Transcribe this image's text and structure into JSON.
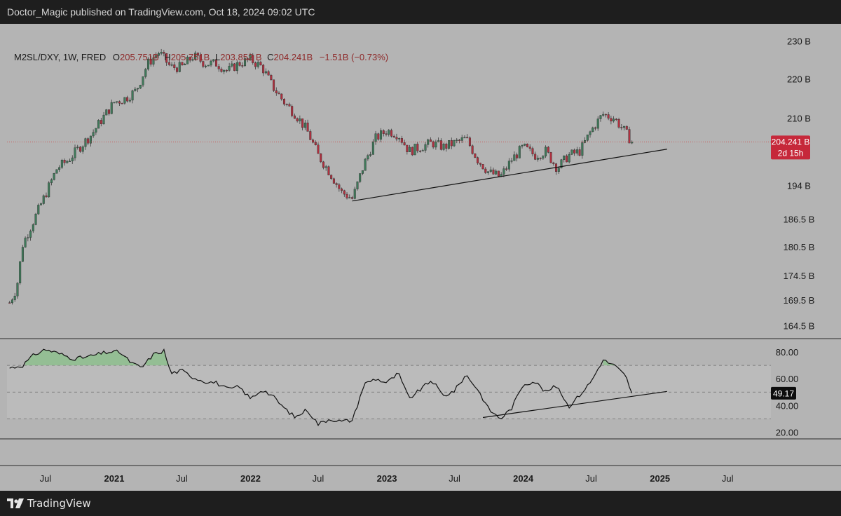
{
  "header": {
    "published_line": "Doctor_Magic published on TradingView.com, Oct 18, 2024 09:02 UTC"
  },
  "legend": {
    "symbol": "M2SL/DXY, 1W, FRED",
    "open_label": "O",
    "open": "205.751B",
    "high_label": "H",
    "high": "205.751B",
    "low_label": "L",
    "low": "203.852 B",
    "close_label": "C",
    "close": "204.241B",
    "change": "−1.51B (−0.73%)"
  },
  "price_badge": {
    "value": "204.241 B",
    "countdown": "2d 15h"
  },
  "rsi_badge": {
    "value": "49.17"
  },
  "footer": {
    "brand": "TradingView"
  },
  "colors": {
    "background": "#b4b4b4",
    "frame": "#1e1e1e",
    "up_candle": "#3f7a5a",
    "down_candle": "#b0303f",
    "wick": "#3a3a3a",
    "price_line": "#d23c3c",
    "badge": "#c6283a",
    "rsi_fill_over": "#8cc08c",
    "rsi_band": "#c0c0c0"
  },
  "chart_data": [
    {
      "type": "candlestick",
      "title": "M2SL/DXY, 1W, FRED",
      "scale": "log",
      "ylim": [
        162,
        232
      ],
      "y_ticks": [
        "230 B",
        "220 B",
        "210 B",
        "194 B",
        "186.5 B",
        "180.5 B",
        "174.5 B",
        "169.5 B",
        "164.5 B"
      ],
      "x_ticks": [
        "Jul",
        "2021",
        "Jul",
        "2022",
        "Jul",
        "2023",
        "Jul",
        "2024",
        "Jul",
        "2025",
        "Jul"
      ],
      "xlim": [
        "2020-03-20",
        "2025-10-25"
      ],
      "series": [
        {
          "dates": [
            "2020-03-27",
            "2020-04-15",
            "2020-05-01",
            "2020-06-01",
            "2020-07-01",
            "2020-08-01",
            "2020-09-01",
            "2020-10-01",
            "2020-11-01",
            "2020-12-01",
            "2021-01-01",
            "2021-02-01",
            "2021-03-01",
            "2021-04-01",
            "2021-05-01",
            "2021-06-01",
            "2021-07-01",
            "2021-08-01",
            "2021-09-01",
            "2021-10-01",
            "2021-11-01",
            "2021-12-01",
            "2022-01-01",
            "2022-02-01",
            "2022-03-01",
            "2022-04-01",
            "2022-05-01",
            "2022-06-01",
            "2022-07-01",
            "2022-08-01",
            "2022-09-01",
            "2022-10-01",
            "2022-11-01",
            "2022-12-01",
            "2023-01-01",
            "2023-02-01",
            "2023-03-01",
            "2023-04-01",
            "2023-05-01",
            "2023-06-01",
            "2023-07-01",
            "2023-08-01",
            "2023-09-01",
            "2023-10-01",
            "2023-11-01",
            "2023-12-01",
            "2024-01-01",
            "2024-02-01",
            "2024-03-01",
            "2024-04-01",
            "2024-05-01",
            "2024-06-01",
            "2024-07-01",
            "2024-08-01",
            "2024-09-01",
            "2024-10-01",
            "2024-10-18"
          ],
          "values": [
            169,
            172,
            181,
            186.5,
            192,
            198,
            200,
            203,
            206,
            210,
            214,
            215,
            217,
            224,
            227,
            223,
            223,
            226,
            224,
            224,
            222,
            224,
            225,
            223,
            218,
            214,
            211,
            207,
            201,
            197,
            192.5,
            191,
            199,
            205,
            207,
            206,
            202,
            203,
            204,
            203,
            204,
            205,
            200,
            197,
            196,
            200,
            203,
            201,
            202,
            198,
            201,
            202,
            207,
            211,
            210,
            206.5,
            204.2
          ]
        }
      ],
      "trendline": {
        "from": [
          "2022-09-30",
          190.5
        ],
        "to": [
          "2025-01-20",
          202.5
        ]
      },
      "last_price": 204.241
    },
    {
      "type": "line",
      "title": "RSI",
      "ylim": [
        15,
        90
      ],
      "y_ticks": [
        "80.00",
        "60.00",
        "40.00",
        "20.00"
      ],
      "bands": [
        70,
        50,
        30
      ],
      "series": [
        {
          "dates": [
            "2020-03-27",
            "2020-05-01",
            "2020-06-01",
            "2020-07-01",
            "2020-08-15",
            "2020-09-15",
            "2020-10-15",
            "2020-11-15",
            "2020-12-15",
            "2021-01-15",
            "2021-02-15",
            "2021-03-15",
            "2021-04-15",
            "2021-05-15",
            "2021-06-01",
            "2021-07-01",
            "2021-08-01",
            "2021-09-01",
            "2021-10-01",
            "2021-11-01",
            "2021-12-01",
            "2022-01-01",
            "2022-02-01",
            "2022-03-01",
            "2022-04-01",
            "2022-05-01",
            "2022-06-01",
            "2022-07-01",
            "2022-08-01",
            "2022-09-01",
            "2022-10-01",
            "2022-11-01",
            "2022-12-01",
            "2023-01-01",
            "2023-02-01",
            "2023-03-01",
            "2023-04-01",
            "2023-05-01",
            "2023-06-01",
            "2023-07-01",
            "2023-08-01",
            "2023-09-01",
            "2023-10-01",
            "2023-11-01",
            "2023-12-01",
            "2024-01-01",
            "2024-02-01",
            "2024-03-01",
            "2024-04-01",
            "2024-05-01",
            "2024-06-01",
            "2024-07-01",
            "2024-08-01",
            "2024-09-01",
            "2024-10-01",
            "2024-10-18"
          ],
          "values": [
            68,
            70,
            78,
            82,
            78,
            75,
            76,
            78,
            80,
            80,
            72,
            68,
            78,
            81,
            64,
            66,
            61,
            58,
            57,
            52,
            54,
            45,
            52,
            47,
            38,
            31,
            37,
            26,
            30,
            28,
            29,
            56,
            60,
            57,
            64,
            45,
            52,
            59,
            47,
            51,
            63,
            52,
            37,
            30,
            38,
            56,
            58,
            50,
            55,
            39,
            48,
            58,
            74,
            70,
            62,
            49.17
          ]
        }
      ],
      "trendline": {
        "from": [
          "2023-09-15",
          31
        ],
        "to": [
          "2025-01-20",
          50.5
        ]
      },
      "last_value": 49.17
    }
  ]
}
